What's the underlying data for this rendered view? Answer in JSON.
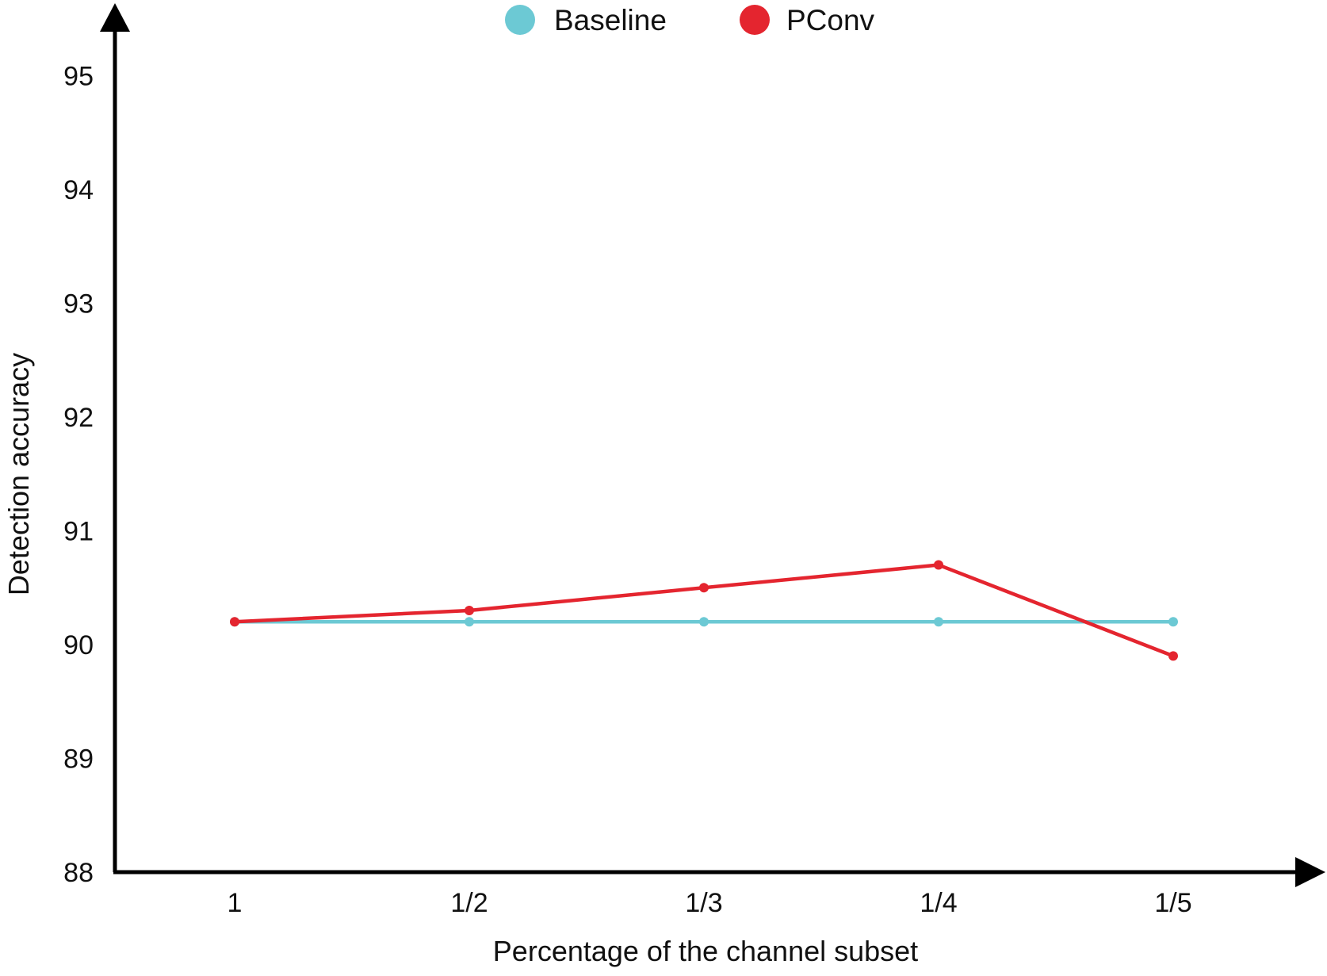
{
  "chart_data": {
    "type": "line",
    "title": "",
    "xlabel": "Percentage of the channel subset",
    "ylabel": "Detection accuracy",
    "categories": [
      "1",
      "1/2",
      "1/3",
      "1/4",
      "1/5"
    ],
    "yticks": [
      "88",
      "89",
      "90",
      "91",
      "92",
      "93",
      "94",
      "95"
    ],
    "ylim": [
      88,
      95.5
    ],
    "grid": false,
    "legend_position": "top-center",
    "series": [
      {
        "name": "Baseline",
        "color": "#6cc9d4",
        "values": [
          90.2,
          90.2,
          90.2,
          90.2,
          90.2
        ]
      },
      {
        "name": "PConv",
        "color": "#e4252f",
        "values": [
          90.2,
          90.3,
          90.5,
          90.7,
          89.9
        ]
      }
    ],
    "axis_color": "#000000"
  }
}
